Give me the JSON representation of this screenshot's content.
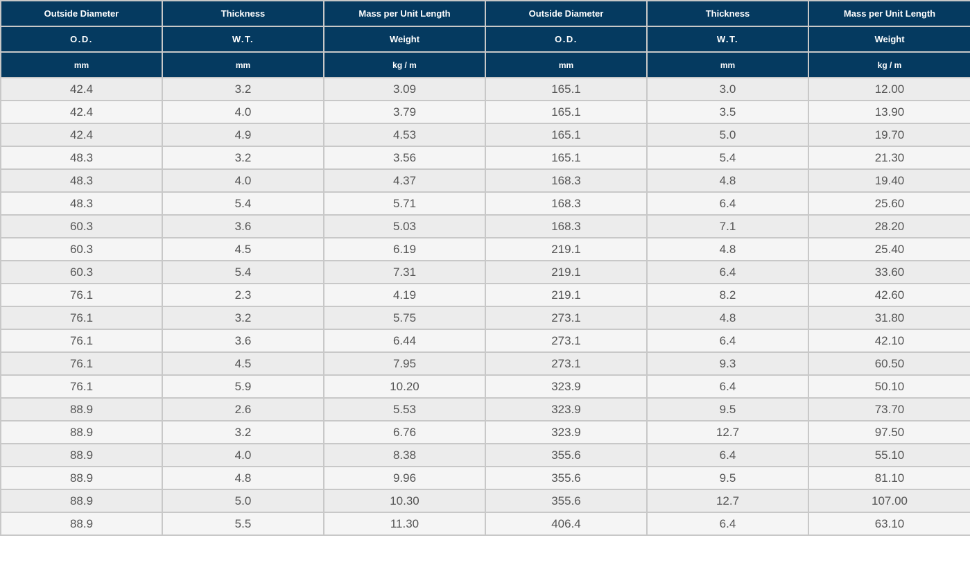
{
  "headers": {
    "row1": [
      "Outside Diameter",
      "Thickness",
      "Mass per Unit Length",
      "Outside Diameter",
      "Thickness",
      "Mass per Unit Length"
    ],
    "row2": [
      "O.D.",
      "W.T.",
      "Weight",
      "O.D.",
      "W.T.",
      "Weight"
    ],
    "row3": [
      "mm",
      "mm",
      "kg / m",
      "mm",
      "mm",
      "kg / m"
    ]
  },
  "rows": [
    [
      "42.4",
      "3.2",
      "3.09",
      "165.1",
      "3.0",
      "12.00"
    ],
    [
      "42.4",
      "4.0",
      "3.79",
      "165.1",
      "3.5",
      "13.90"
    ],
    [
      "42.4",
      "4.9",
      "4.53",
      "165.1",
      "5.0",
      "19.70"
    ],
    [
      "48.3",
      "3.2",
      "3.56",
      "165.1",
      "5.4",
      "21.30"
    ],
    [
      "48.3",
      "4.0",
      "4.37",
      "168.3",
      "4.8",
      "19.40"
    ],
    [
      "48.3",
      "5.4",
      "5.71",
      "168.3",
      "6.4",
      "25.60"
    ],
    [
      "60.3",
      "3.6",
      "5.03",
      "168.3",
      "7.1",
      "28.20"
    ],
    [
      "60.3",
      "4.5",
      "6.19",
      "219.1",
      "4.8",
      "25.40"
    ],
    [
      "60.3",
      "5.4",
      "7.31",
      "219.1",
      "6.4",
      "33.60"
    ],
    [
      "76.1",
      "2.3",
      "4.19",
      "219.1",
      "8.2",
      "42.60"
    ],
    [
      "76.1",
      "3.2",
      "5.75",
      "273.1",
      "4.8",
      "31.80"
    ],
    [
      "76.1",
      "3.6",
      "6.44",
      "273.1",
      "6.4",
      "42.10"
    ],
    [
      "76.1",
      "4.5",
      "7.95",
      "273.1",
      "9.3",
      "60.50"
    ],
    [
      "76.1",
      "5.9",
      "10.20",
      "323.9",
      "6.4",
      "50.10"
    ],
    [
      "88.9",
      "2.6",
      "5.53",
      "323.9",
      "9.5",
      "73.70"
    ],
    [
      "88.9",
      "3.2",
      "6.76",
      "323.9",
      "12.7",
      "97.50"
    ],
    [
      "88.9",
      "4.0",
      "8.38",
      "355.6",
      "6.4",
      "55.10"
    ],
    [
      "88.9",
      "4.8",
      "9.96",
      "355.6",
      "9.5",
      "81.10"
    ],
    [
      "88.9",
      "5.0",
      "10.30",
      "355.6",
      "12.7",
      "107.00"
    ],
    [
      "88.9",
      "5.5",
      "11.30",
      "406.4",
      "6.4",
      "63.10"
    ]
  ],
  "colors": {
    "header_bg": "#053a60",
    "header_text": "#ffffff",
    "row_odd_bg": "#ececec",
    "row_even_bg": "#f5f5f5",
    "cell_text": "#555555",
    "border": "#c8c8c8"
  }
}
